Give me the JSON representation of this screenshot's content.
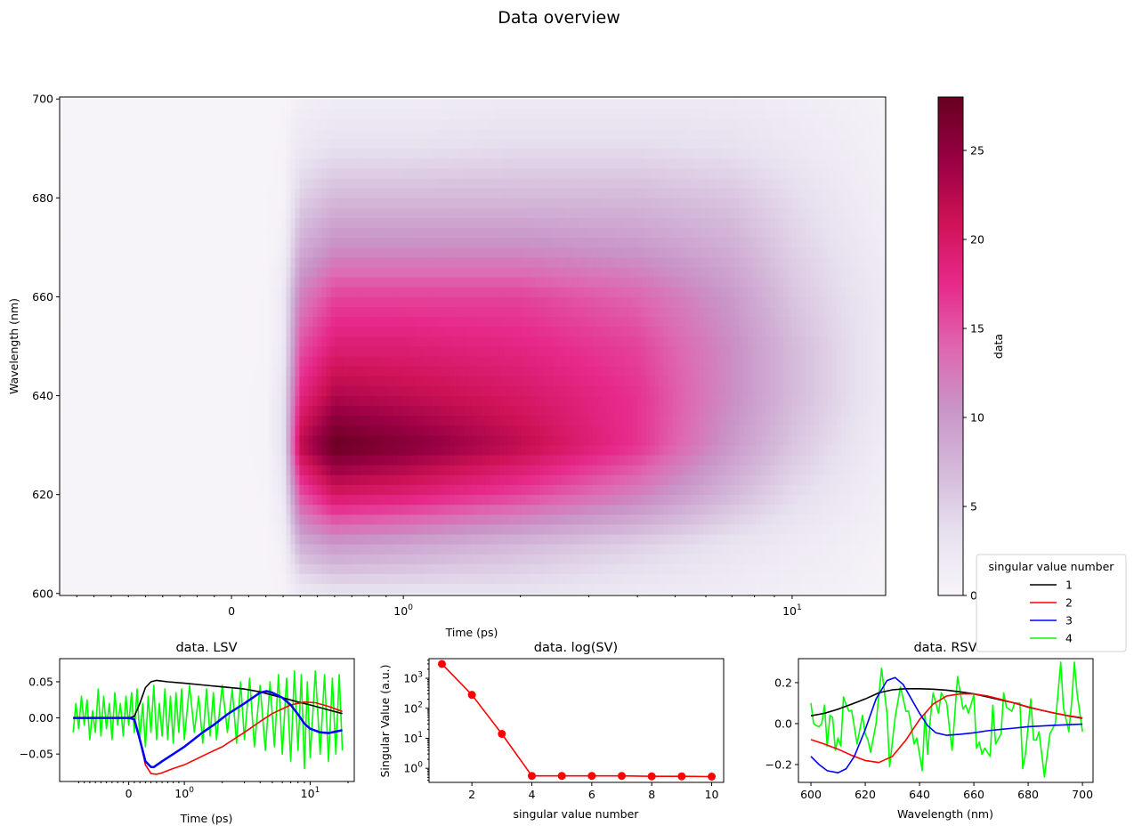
{
  "figure": {
    "title": "Data overview"
  },
  "chart_data": [
    {
      "type": "heatmap",
      "xlabel": "Time (ps)",
      "ylabel": "Wavelength (nm)",
      "xscale": "symlog",
      "xlim": [
        -1,
        17.4
      ],
      "ylim": [
        599.6,
        700.4
      ],
      "xticks": [
        {
          "v": 0,
          "label": "0"
        },
        {
          "v": 1,
          "label": "10^0"
        },
        {
          "v": 10,
          "label": "10^1"
        }
      ],
      "yticks": [
        600,
        620,
        640,
        660,
        680,
        700
      ],
      "colormap": [
        "#f7f4f9",
        "#e7e1ef",
        "#d4b9da",
        "#c994c7",
        "#df65b0",
        "#e7298a",
        "#ce1256",
        "#980043",
        "#67001f"
      ],
      "colorbar": {
        "label": "data",
        "range": [
          0,
          28
        ],
        "ticks": [
          0,
          5,
          10,
          15,
          20,
          25
        ]
      },
      "times": [
        -1,
        0,
        0.2,
        0.3,
        0.4,
        0.6,
        1,
        2,
        4,
        7,
        10,
        17.4
      ],
      "wavelengths": [
        600,
        610,
        620,
        630,
        640,
        650,
        660,
        670,
        680,
        690,
        700
      ],
      "values": [
        [
          0,
          0,
          0,
          0.3,
          2,
          3,
          3,
          3,
          2,
          1.5,
          1,
          0.3
        ],
        [
          0,
          0,
          0.1,
          1,
          8,
          10,
          9,
          7,
          5,
          3,
          2,
          0.5
        ],
        [
          0,
          0,
          0.2,
          2,
          15,
          20,
          19,
          16,
          12,
          7,
          4,
          1
        ],
        [
          0,
          0,
          0.3,
          3,
          22,
          28,
          26,
          22,
          17,
          10,
          6,
          1.5
        ],
        [
          0,
          0,
          0.3,
          3,
          18,
          23,
          22,
          20,
          17,
          11,
          7,
          2
        ],
        [
          0,
          0,
          0.2,
          2,
          15,
          19,
          19,
          18,
          16,
          11,
          7,
          2
        ],
        [
          0,
          0,
          0.2,
          2,
          12,
          16,
          16,
          16,
          14,
          10,
          6,
          2
        ],
        [
          0,
          0,
          0.1,
          1,
          8,
          11,
          11,
          11,
          10,
          8,
          5,
          1.5
        ],
        [
          0,
          0,
          0.1,
          0.5,
          5,
          7,
          7,
          7,
          7,
          6,
          4,
          1
        ],
        [
          0,
          0,
          0,
          0.3,
          2.5,
          3.5,
          3.5,
          4,
          4,
          3.5,
          2.5,
          0.7
        ],
        [
          0,
          0,
          0,
          0.1,
          1,
          1.5,
          1.5,
          2,
          2,
          2,
          1.5,
          0.5
        ]
      ]
    },
    {
      "type": "line",
      "title": "data. LSV",
      "xlabel": "Time (ps)",
      "xscale": "symlog",
      "xlim": [
        -1.28,
        22.4
      ],
      "ylim": [
        -0.088,
        0.082
      ],
      "xticks": [
        {
          "v": 0,
          "label": "0"
        },
        {
          "v": 1,
          "label": "10^0"
        },
        {
          "v": 10,
          "label": "10^1"
        }
      ],
      "yticks": [
        {
          "v": 0.05,
          "label": "0.05"
        },
        {
          "v": 0,
          "label": "0.00"
        },
        {
          "v": -0.05,
          "label": "−0.05"
        }
      ],
      "series": [
        {
          "name": "4",
          "color": "#00ff00",
          "x": [
            -1,
            -0.95,
            -0.9,
            -0.85,
            -0.8,
            -0.75,
            -0.7,
            -0.65,
            -0.6,
            -0.55,
            -0.5,
            -0.45,
            -0.4,
            -0.35,
            -0.3,
            -0.25,
            -0.2,
            -0.15,
            -0.1,
            -0.05,
            0,
            0.05,
            0.1,
            0.15,
            0.2,
            0.25,
            0.3,
            0.35,
            0.4,
            0.45,
            0.5,
            0.55,
            0.6,
            0.65,
            0.7,
            0.75,
            0.8,
            0.85,
            0.9,
            0.95,
            1,
            1.1,
            1.2,
            1.3,
            1.4,
            1.5,
            1.6,
            1.7,
            1.8,
            2,
            2.2,
            2.4,
            2.6,
            2.8,
            3,
            3.3,
            3.6,
            4,
            4.4,
            4.8,
            5.2,
            5.6,
            6,
            6.5,
            7,
            7.5,
            8,
            8.5,
            9,
            9.5,
            10,
            11,
            12,
            13,
            14,
            15,
            16,
            17,
            18
          ],
          "y": [
            -0.02,
            0.02,
            -0.015,
            0.03,
            -0.01,
            0.025,
            -0.03,
            0.01,
            -0.02,
            0.04,
            -0.025,
            0.03,
            -0.015,
            0.02,
            -0.03,
            0.035,
            -0.01,
            0.02,
            -0.025,
            0.03,
            -0.01,
            0.035,
            -0.02,
            0.04,
            -0.03,
            0.02,
            -0.04,
            0.03,
            -0.02,
            0.045,
            -0.03,
            0.02,
            -0.025,
            0.04,
            -0.03,
            0.03,
            -0.035,
            0.035,
            -0.02,
            0.04,
            -0.03,
            0.045,
            -0.02,
            0.03,
            -0.035,
            0.04,
            -0.025,
            0.035,
            -0.03,
            0.045,
            -0.02,
            0.04,
            -0.035,
            0.05,
            -0.03,
            0.055,
            -0.04,
            0.045,
            -0.045,
            0.05,
            -0.04,
            0.06,
            -0.05,
            0.055,
            -0.06,
            0.065,
            -0.045,
            0.06,
            -0.07,
            0.05,
            -0.055,
            0.065,
            -0.05,
            0.06,
            -0.06,
            0.055,
            -0.05,
            0.06,
            -0.045
          ]
        },
        {
          "name": "1",
          "color": "#000000",
          "x": [
            -1,
            0,
            0.1,
            0.2,
            0.3,
            0.4,
            0.5,
            0.7,
            1,
            1.5,
            2,
            3,
            4,
            6,
            8,
            10,
            14,
            18
          ],
          "y": [
            0,
            0,
            0.002,
            0.02,
            0.042,
            0.05,
            0.052,
            0.05,
            0.048,
            0.045,
            0.043,
            0.04,
            0.036,
            0.028,
            0.022,
            0.018,
            0.011,
            0.006
          ]
        },
        {
          "name": "2",
          "color": "#ff0000",
          "x": [
            -1,
            0,
            0.1,
            0.2,
            0.3,
            0.4,
            0.5,
            0.6,
            0.8,
            1,
            1.5,
            2,
            3,
            4,
            5,
            7,
            9,
            11,
            14,
            18
          ],
          "y": [
            0,
            0,
            -0.002,
            -0.03,
            -0.065,
            -0.077,
            -0.078,
            -0.076,
            -0.07,
            -0.065,
            -0.05,
            -0.04,
            -0.02,
            -0.005,
            0.006,
            0.018,
            0.022,
            0.021,
            0.016,
            0.009
          ]
        },
        {
          "name": "3",
          "color": "#0000ff",
          "x": [
            -1,
            0,
            0.1,
            0.2,
            0.3,
            0.4,
            0.45,
            0.6,
            0.8,
            1,
            1.4,
            1.7,
            2.2,
            3,
            3.5,
            4,
            4.5,
            5,
            6,
            7,
            8,
            9,
            10,
            12,
            14,
            18
          ],
          "y": [
            0,
            0,
            -0.002,
            -0.03,
            -0.06,
            -0.068,
            -0.068,
            -0.06,
            -0.05,
            -0.04,
            -0.02,
            -0.01,
            0.005,
            0.02,
            0.028,
            0.035,
            0.037,
            0.035,
            0.028,
            0.018,
            0.005,
            -0.008,
            -0.015,
            -0.02,
            -0.021,
            -0.017
          ]
        }
      ]
    },
    {
      "type": "line",
      "title": "data. log(SV)",
      "xlabel": "singular value number",
      "ylabel": "Singular Value (a.u.)",
      "yscale": "log",
      "xlim": [
        0.57,
        10.4
      ],
      "ylim": [
        0.34,
        4500
      ],
      "xticks": [
        2,
        4,
        6,
        8,
        10
      ],
      "yticks": [
        {
          "v": 1,
          "label": "10^0"
        },
        {
          "v": 10,
          "label": "10^1"
        },
        {
          "v": 100,
          "label": "10^2"
        },
        {
          "v": 1000,
          "label": "10^3"
        }
      ],
      "series": [
        {
          "color": "#ff0000",
          "marker": "circle",
          "x": [
            1,
            2,
            3,
            4,
            5,
            6,
            7,
            8,
            9,
            10
          ],
          "y": [
            3000,
            280,
            14,
            0.56,
            0.56,
            0.56,
            0.56,
            0.54,
            0.54,
            0.53
          ]
        }
      ]
    },
    {
      "type": "line",
      "title": "data. RSV",
      "xlabel": "Wavelength (nm)",
      "xlim": [
        595.4,
        703.9
      ],
      "ylim": [
        -0.287,
        0.317
      ],
      "xticks": [
        600,
        620,
        640,
        660,
        680,
        700
      ],
      "yticks": [
        {
          "v": 0.2,
          "label": "0.2"
        },
        {
          "v": 0,
          "label": "0.0"
        },
        {
          "v": -0.2,
          "label": "−0.2"
        }
      ],
      "series": [
        {
          "name": "4",
          "color": "#00ff00",
          "x": [
            600,
            601,
            602,
            603,
            604,
            605,
            606,
            607,
            608,
            609,
            610,
            611,
            612,
            613,
            614,
            615,
            617,
            619,
            620,
            621,
            622,
            624,
            626,
            628,
            629,
            631,
            633,
            635,
            636,
            638,
            639,
            641,
            642,
            643,
            644,
            645,
            647,
            648,
            650,
            651,
            652,
            654,
            656,
            657,
            658,
            660,
            661,
            662,
            663,
            664,
            666,
            667,
            668,
            670,
            671,
            672,
            674,
            675,
            677,
            678,
            679,
            681,
            682,
            683,
            684,
            686,
            688,
            690,
            692,
            693,
            695,
            696,
            697,
            698,
            700
          ],
          "y": [
            0.1,
            0.0,
            -0.01,
            -0.015,
            0.0,
            0.09,
            -0.11,
            0.04,
            0.03,
            -0.13,
            -0.07,
            -0.11,
            0.13,
            0.09,
            0.06,
            0.065,
            -0.1,
            0.04,
            -0.05,
            -0.08,
            -0.14,
            0.0,
            0.27,
            0.05,
            -0.21,
            0.03,
            0.18,
            0.06,
            0.06,
            -0.1,
            -0.07,
            -0.23,
            0.05,
            -0.15,
            0.03,
            0.15,
            0.05,
            0.15,
            0.1,
            -0.02,
            -0.13,
            0.23,
            0.07,
            0.09,
            0.05,
            0.14,
            -0.12,
            -0.09,
            -0.15,
            -0.12,
            -0.16,
            0.09,
            -0.1,
            -0.05,
            0.15,
            0.08,
            0.06,
            0.1,
            0.1,
            -0.22,
            -0.15,
            0.12,
            -0.08,
            -0.08,
            -0.04,
            -0.26,
            -0.05,
            0.0,
            0.3,
            0.08,
            -0.04,
            0.1,
            0.3,
            0.15,
            -0.04
          ]
        },
        {
          "name": "1",
          "color": "#000000",
          "x": [
            600,
            605,
            610,
            615,
            620,
            625,
            630,
            635,
            640,
            645,
            650,
            655,
            660,
            665,
            670,
            675,
            680,
            685,
            690,
            695,
            700
          ],
          "y": [
            0.038,
            0.05,
            0.07,
            0.095,
            0.12,
            0.15,
            0.165,
            0.17,
            0.17,
            0.168,
            0.163,
            0.155,
            0.145,
            0.13,
            0.115,
            0.1,
            0.08,
            0.065,
            0.05,
            0.037,
            0.026
          ]
        },
        {
          "name": "2",
          "color": "#ff0000",
          "x": [
            600,
            605,
            610,
            615,
            620,
            625,
            630,
            635,
            640,
            645,
            650,
            655,
            660,
            665,
            670,
            675,
            680,
            685,
            690,
            695,
            700
          ],
          "y": [
            -0.078,
            -0.1,
            -0.125,
            -0.155,
            -0.18,
            -0.19,
            -0.16,
            -0.08,
            0.02,
            0.095,
            0.135,
            0.145,
            0.145,
            0.135,
            0.118,
            0.1,
            0.082,
            0.065,
            0.05,
            0.038,
            0.028
          ]
        },
        {
          "name": "3",
          "color": "#0000ff",
          "x": [
            600,
            603,
            606,
            610,
            613,
            616,
            620,
            624,
            628,
            631,
            634,
            637,
            640,
            643,
            646,
            650,
            655,
            660,
            665,
            670,
            675,
            680,
            690,
            700
          ],
          "y": [
            -0.16,
            -0.2,
            -0.23,
            -0.24,
            -0.22,
            -0.16,
            -0.03,
            0.12,
            0.21,
            0.225,
            0.19,
            0.12,
            0.05,
            -0.01,
            -0.045,
            -0.057,
            -0.052,
            -0.045,
            -0.035,
            -0.028,
            -0.022,
            -0.015,
            -0.008,
            -0.003
          ]
        }
      ]
    }
  ],
  "legend": {
    "title": "singular value number",
    "entries": [
      {
        "label": "1",
        "color": "#000000"
      },
      {
        "label": "2",
        "color": "#ff0000"
      },
      {
        "label": "3",
        "color": "#0000ff"
      },
      {
        "label": "4",
        "color": "#00ff00"
      }
    ],
    "placement": "right"
  }
}
